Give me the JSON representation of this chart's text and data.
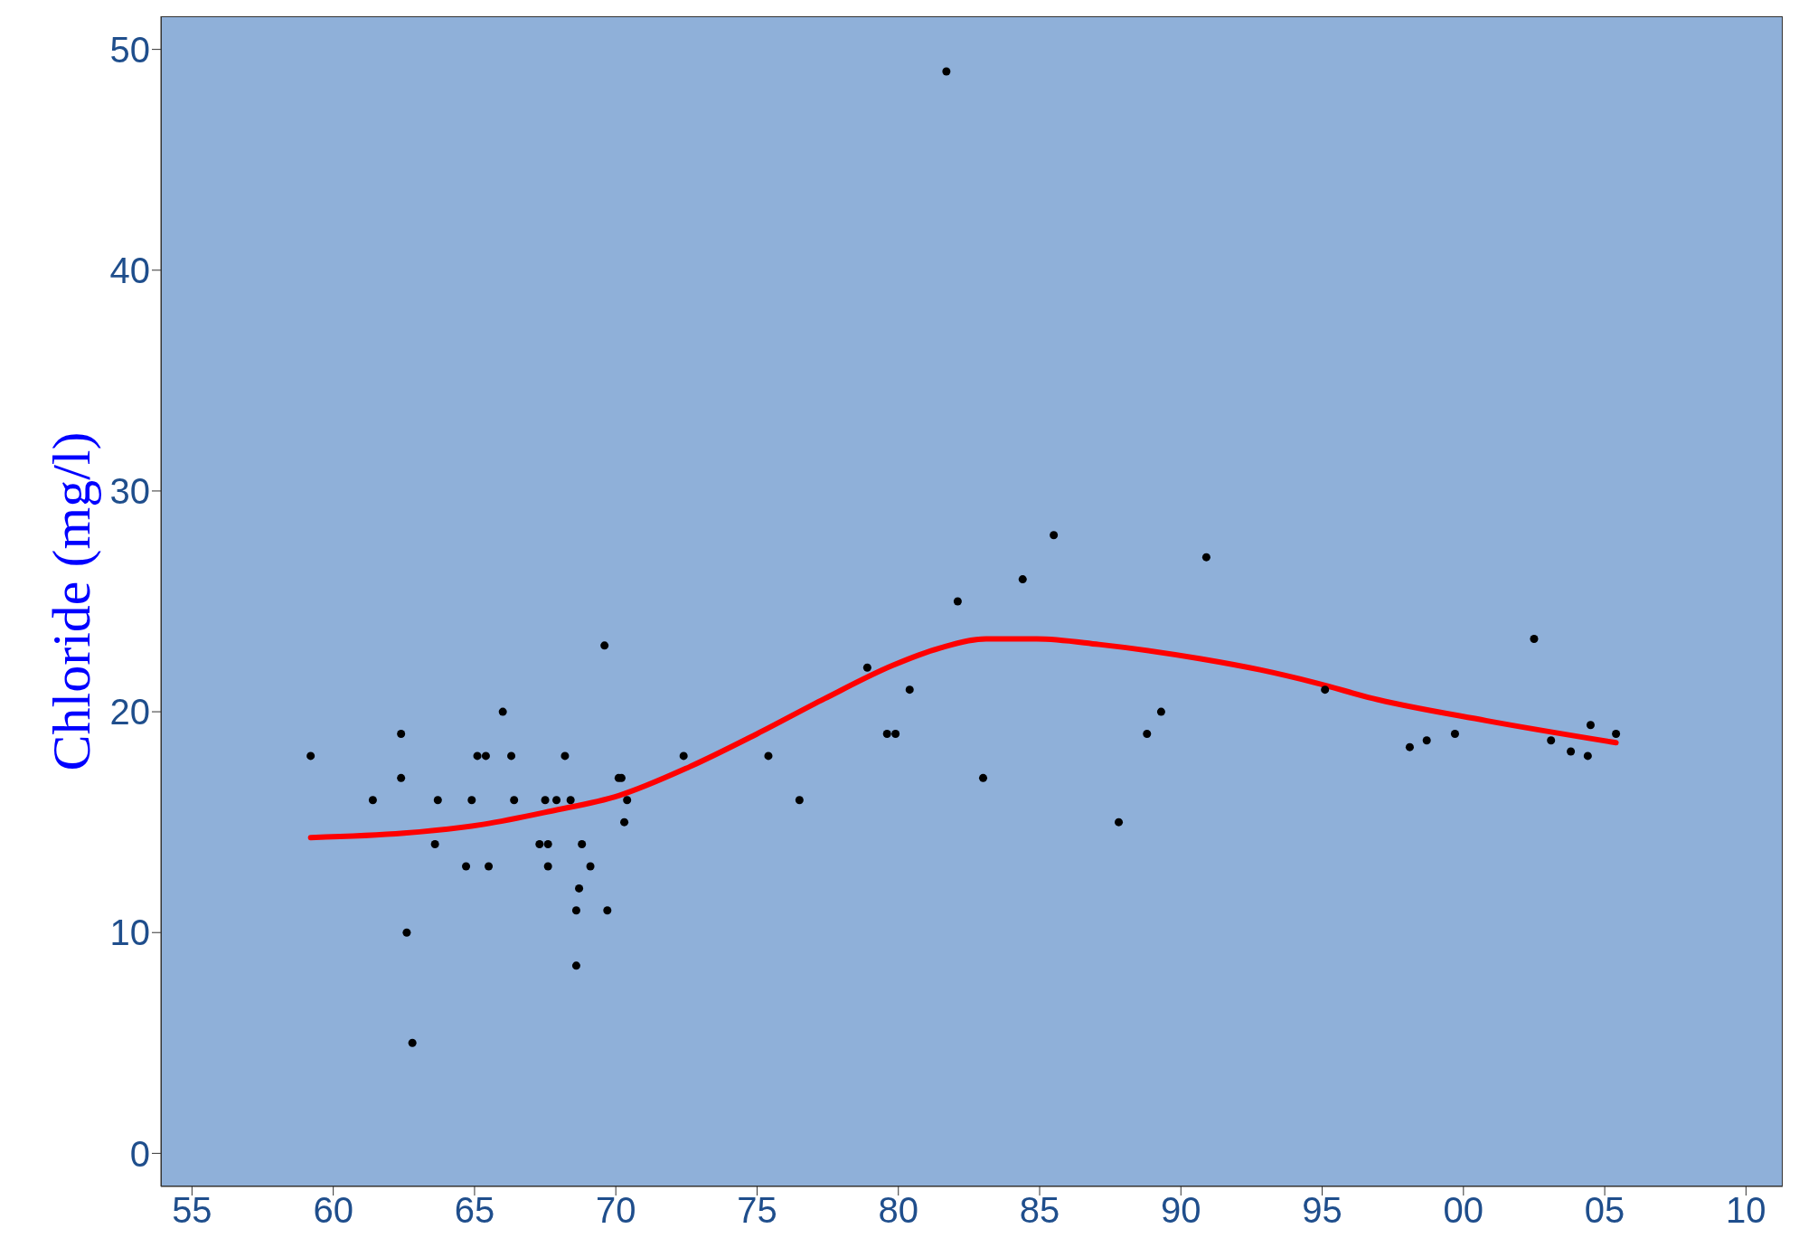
{
  "chart_data": {
    "type": "scatter",
    "ylabel": "Chloride (mg/l)",
    "xlim": [
      1953.9,
      2011.3
    ],
    "ylim": [
      -1.5,
      51.5
    ],
    "xticks": [
      {
        "value": 1955,
        "label": "55"
      },
      {
        "value": 1960,
        "label": "60"
      },
      {
        "value": 1965,
        "label": "65"
      },
      {
        "value": 1970,
        "label": "70"
      },
      {
        "value": 1975,
        "label": "75"
      },
      {
        "value": 1980,
        "label": "80"
      },
      {
        "value": 1985,
        "label": "85"
      },
      {
        "value": 1990,
        "label": "90"
      },
      {
        "value": 1995,
        "label": "95"
      },
      {
        "value": 2000,
        "label": "00"
      },
      {
        "value": 2005,
        "label": "05"
      },
      {
        "value": 2010,
        "label": "10"
      }
    ],
    "yticks": [
      0,
      10,
      20,
      30,
      40,
      50
    ],
    "grid": false,
    "legend": false,
    "series": [
      {
        "type": "scatter",
        "color": "#000000",
        "marker": "circle",
        "x": [
          1959.2,
          1961.4,
          1962.4,
          1962.4,
          1962.6,
          1962.8,
          1963.6,
          1963.7,
          1964.7,
          1964.9,
          1965.1,
          1965.4,
          1965.5,
          1966.0,
          1966.3,
          1966.4,
          1967.3,
          1967.5,
          1967.6,
          1967.6,
          1967.9,
          1968.2,
          1968.4,
          1968.6,
          1968.6,
          1968.7,
          1968.8,
          1969.1,
          1969.6,
          1969.7,
          1970.1,
          1970.2,
          1970.3,
          1970.4,
          1972.4,
          1975.4,
          1976.5,
          1978.9,
          1979.6,
          1979.9,
          1980.4,
          1981.7,
          1982.1,
          1983.0,
          1984.4,
          1985.5,
          1987.8,
          1988.8,
          1989.3,
          1990.9,
          1995.1,
          1998.1,
          1998.7,
          1999.7,
          2002.5,
          2003.1,
          2003.8,
          2004.4,
          2004.5,
          2005.4
        ],
        "values": [
          18,
          16,
          19,
          17,
          10,
          5,
          14,
          16,
          13,
          16,
          18,
          18,
          13,
          20,
          18,
          16,
          14,
          16,
          13,
          14,
          16,
          18,
          16,
          11,
          8.5,
          12,
          14,
          13,
          23,
          11,
          17,
          17,
          15,
          16,
          18,
          18,
          16,
          22,
          19,
          19,
          21,
          49,
          25,
          17,
          26,
          28,
          15,
          19,
          20,
          27,
          21,
          18.4,
          18.7,
          19,
          23.3,
          18.7,
          18.2,
          18,
          19.4,
          19
        ]
      },
      {
        "type": "line",
        "color": "#ff0000",
        "marker": "none",
        "line_style": "solid",
        "x": [
          1959.2,
          1962.5,
          1965.3,
          1967.7,
          1970.1,
          1972.6,
          1975,
          1977.4,
          1979.8,
          1981.5,
          1983.1,
          1984.9,
          1987.1,
          1990.7,
          1992.8,
          1994.8,
          1996.8,
          2000.8,
          2005.4
        ],
        "values": [
          14.3,
          14.5,
          14.9,
          15.5,
          16.2,
          17.5,
          19,
          20.6,
          22.1,
          22.9,
          23.3,
          23.3,
          23.05,
          22.4,
          21.9,
          21.3,
          20.6,
          19.6,
          18.6
        ]
      }
    ]
  }
}
